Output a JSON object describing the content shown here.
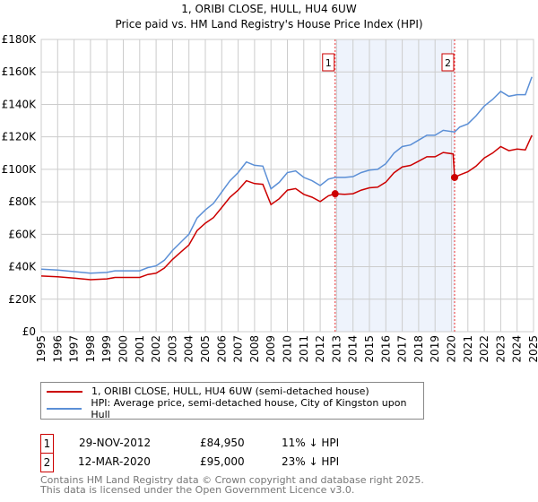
{
  "chart_data": {
    "type": "line",
    "title": "1, ORIBI CLOSE, HULL, HU4 6UW",
    "subtitle": "Price paid vs. HM Land Registry's House Price Index (HPI)",
    "ylim": [
      0,
      180000
    ],
    "xlim": [
      1995,
      2025
    ],
    "yticks": [
      "£0",
      "£20K",
      "£40K",
      "£60K",
      "£80K",
      "£100K",
      "£120K",
      "£140K",
      "£160K",
      "£180K"
    ],
    "xticks": [
      "1995",
      "1996",
      "1997",
      "1998",
      "1999",
      "2000",
      "2001",
      "2002",
      "2003",
      "2004",
      "2005",
      "2006",
      "2007",
      "2008",
      "2009",
      "2010",
      "2011",
      "2012",
      "2013",
      "2014",
      "2015",
      "2016",
      "2017",
      "2018",
      "2019",
      "2020",
      "2021",
      "2022",
      "2023",
      "2024",
      "2025"
    ],
    "grid": true,
    "colors": {
      "property": "#cc0000",
      "hpi": "#5b8fd6",
      "shade": "#eef3fc"
    },
    "series": [
      {
        "name": "1, ORIBI CLOSE, HULL, HU4 6UW (semi-detached house)",
        "key": "property",
        "x": [
          1995,
          1996,
          1997,
          1998,
          1999,
          1999.5,
          2000,
          2001,
          2001.5,
          2002,
          2002.5,
          2003,
          2003.5,
          2004,
          2004.5,
          2005,
          2005.5,
          2006,
          2006.5,
          2007,
          2007.5,
          2008,
          2008.5,
          2009,
          2009.5,
          2010,
          2010.5,
          2011,
          2011.5,
          2012,
          2012.5,
          2012.91,
          2013.5,
          2014,
          2014.5,
          2015,
          2015.5,
          2016,
          2016.5,
          2017,
          2017.5,
          2018,
          2018.5,
          2019,
          2019.5,
          2020.1,
          2020.19,
          2020.5,
          2021,
          2021.5,
          2022,
          2022.5,
          2023,
          2023.5,
          2024,
          2024.5,
          2024.9
        ],
        "y": [
          34300,
          33800,
          33000,
          32000,
          32500,
          33400,
          33400,
          33400,
          35200,
          36000,
          39200,
          44500,
          49000,
          53400,
          62300,
          66800,
          70300,
          76500,
          82800,
          87200,
          93000,
          91200,
          90800,
          78300,
          81900,
          87200,
          88100,
          84600,
          82800,
          80100,
          83700,
          84950,
          84600,
          85000,
          87200,
          88600,
          89000,
          92100,
          97900,
          101500,
          102400,
          105000,
          107700,
          107700,
          110400,
          109500,
          95000,
          96500,
          98500,
          102000,
          107000,
          110000,
          114000,
          111500,
          112500,
          112000,
          121000
        ]
      },
      {
        "name": "HPI: Average price, semi-detached house, City of Kingston upon Hull",
        "key": "hpi",
        "x": [
          1995,
          1996,
          1997,
          1998,
          1999,
          1999.5,
          2000,
          2001,
          2001.5,
          2002,
          2002.5,
          2003,
          2003.5,
          2004,
          2004.5,
          2005,
          2005.5,
          2006,
          2006.5,
          2007,
          2007.5,
          2008,
          2008.5,
          2009,
          2009.5,
          2010,
          2010.5,
          2011,
          2011.5,
          2012,
          2012.5,
          2012.91,
          2013.5,
          2014,
          2014.5,
          2015,
          2015.5,
          2016,
          2016.5,
          2017,
          2017.5,
          2018,
          2018.5,
          2019,
          2019.5,
          2020.19,
          2020.5,
          2021,
          2021.5,
          2022,
          2022.5,
          2023,
          2023.5,
          2024,
          2024.5,
          2024.9
        ],
        "y": [
          38500,
          38000,
          37000,
          36000,
          36500,
          37500,
          37500,
          37500,
          39500,
          40500,
          44000,
          50000,
          55000,
          60000,
          70000,
          75000,
          79000,
          86000,
          93000,
          98000,
          104500,
          102500,
          102000,
          88000,
          92000,
          98000,
          99000,
          95000,
          93000,
          90000,
          94000,
          95000,
          95000,
          95500,
          98000,
          99500,
          100000,
          103500,
          110000,
          114000,
          115000,
          118000,
          121000,
          121000,
          124000,
          123000,
          126000,
          128000,
          133000,
          139000,
          143000,
          148000,
          145000,
          146000,
          146000,
          157000
        ]
      }
    ],
    "sales": [
      {
        "label": "1",
        "date": "29-NOV-2012",
        "x": 2012.91,
        "price": "£84,950",
        "value": 84950,
        "hpi_diff": "11% ↓ HPI"
      },
      {
        "label": "2",
        "date": "12-MAR-2020",
        "x": 2020.19,
        "price": "£95,000",
        "value": 95000,
        "hpi_diff": "23% ↓ HPI"
      }
    ]
  },
  "footer": [
    "Contains HM Land Registry data © Crown copyright and database right 2025.",
    "This data is licensed under the Open Government Licence v3.0."
  ]
}
